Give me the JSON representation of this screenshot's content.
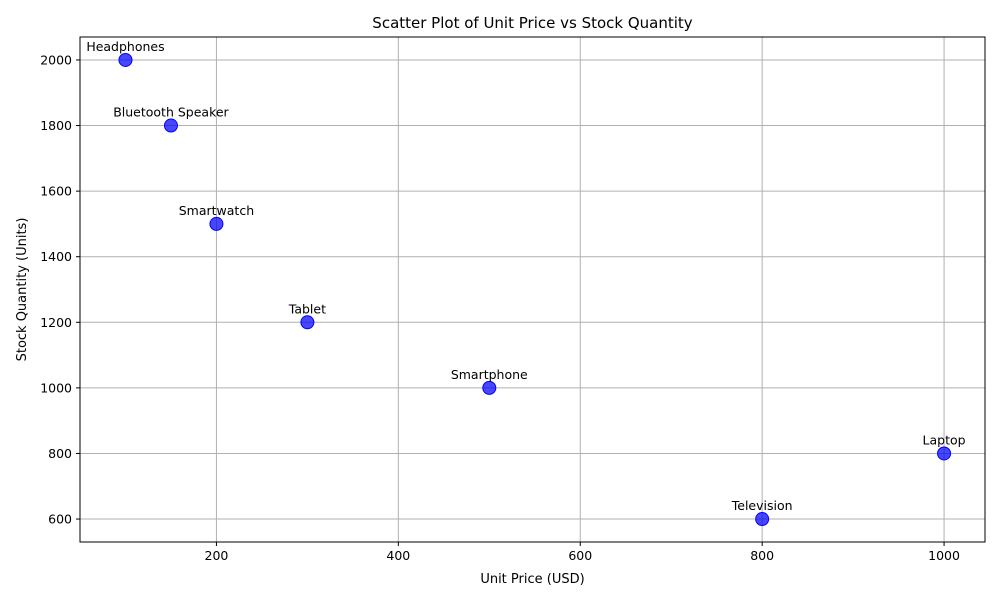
{
  "chart_data": {
    "type": "scatter",
    "title": "Scatter Plot of Unit Price vs Stock Quantity",
    "xlabel": "Unit Price (USD)",
    "ylabel": "Stock Quantity (Units)",
    "xlim": [
      50,
      1045
    ],
    "ylim": [
      530,
      2070
    ],
    "xticks": [
      200,
      400,
      600,
      800,
      1000
    ],
    "yticks": [
      600,
      800,
      1000,
      1200,
      1400,
      1600,
      1800,
      2000
    ],
    "grid": true,
    "marker_color": "#0000ff",
    "points": [
      {
        "label": "Headphones",
        "x": 100,
        "y": 2000
      },
      {
        "label": "Bluetooth Speaker",
        "x": 150,
        "y": 1800
      },
      {
        "label": "Smartwatch",
        "x": 200,
        "y": 1500
      },
      {
        "label": "Tablet",
        "x": 300,
        "y": 1200
      },
      {
        "label": "Smartphone",
        "x": 500,
        "y": 1000
      },
      {
        "label": "Television",
        "x": 800,
        "y": 600
      },
      {
        "label": "Laptop",
        "x": 1000,
        "y": 800
      }
    ]
  }
}
